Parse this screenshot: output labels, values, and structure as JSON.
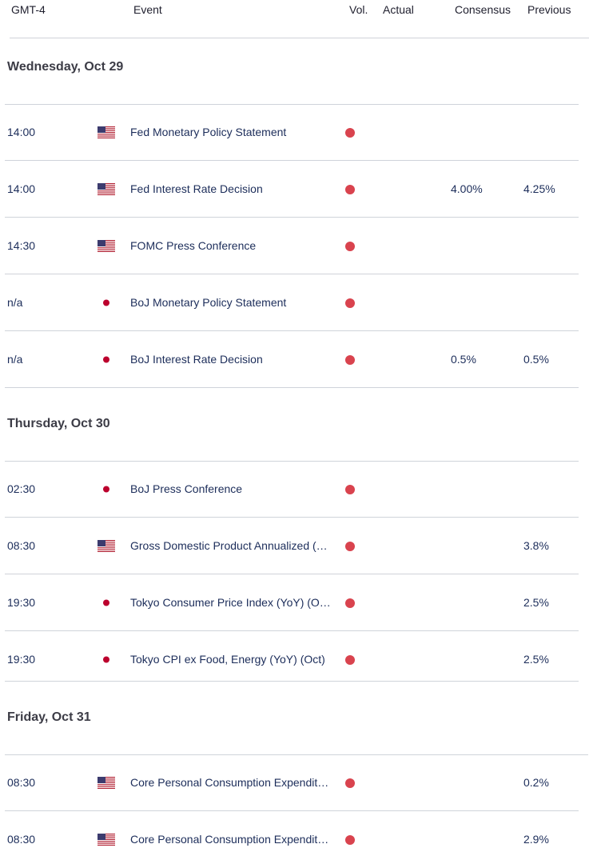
{
  "header": {
    "timezone": "GMT-4",
    "event": "Event",
    "vol": "Vol.",
    "actual": "Actual",
    "consensus": "Consensus",
    "previous": "Previous"
  },
  "colors": {
    "high_impact_dot": "#d9434e",
    "text": "#1c2d5a",
    "divider": "#cfd3da"
  },
  "days": [
    {
      "label": "Wednesday, Oct 29",
      "events": [
        {
          "time": "14:00",
          "flag": "us-flag-icon",
          "event": "Fed Monetary Policy Statement",
          "actual": "",
          "consensus": "",
          "previous": ""
        },
        {
          "time": "14:00",
          "flag": "us-flag-icon",
          "event": "Fed Interest Rate Decision",
          "actual": "",
          "consensus": "4.00%",
          "previous": "4.25%"
        },
        {
          "time": "14:30",
          "flag": "us-flag-icon",
          "event": "FOMC Press Conference",
          "actual": "",
          "consensus": "",
          "previous": ""
        },
        {
          "time": "n/a",
          "flag": "jp-flag-icon",
          "event": "BoJ Monetary Policy Statement",
          "actual": "",
          "consensus": "",
          "previous": ""
        },
        {
          "time": "n/a",
          "flag": "jp-flag-icon",
          "event": "BoJ Interest Rate Decision",
          "actual": "",
          "consensus": "0.5%",
          "previous": "0.5%"
        }
      ]
    },
    {
      "label": "Thursday, Oct 30",
      "events": [
        {
          "time": "02:30",
          "flag": "jp-flag-icon",
          "event": "BoJ Press Conference",
          "actual": "",
          "consensus": "",
          "previous": ""
        },
        {
          "time": "08:30",
          "flag": "us-flag-icon",
          "event": "Gross Domestic Product Annualized (…",
          "actual": "",
          "consensus": "",
          "previous": "3.8%"
        },
        {
          "time": "19:30",
          "flag": "jp-flag-icon",
          "event": "Tokyo Consumer Price Index (YoY) (O…",
          "actual": "",
          "consensus": "",
          "previous": "2.5%"
        },
        {
          "time": "19:30",
          "flag": "jp-flag-icon",
          "event": "Tokyo CPI ex Food, Energy (YoY) (Oct)",
          "actual": "",
          "consensus": "",
          "previous": "2.5%"
        }
      ]
    },
    {
      "label": "Friday, Oct 31",
      "events": [
        {
          "time": "08:30",
          "flag": "us-flag-icon",
          "event": "Core Personal Consumption Expendit…",
          "actual": "",
          "consensus": "",
          "previous": "0.2%"
        },
        {
          "time": "08:30",
          "flag": "us-flag-icon",
          "event": "Core Personal Consumption Expendit…",
          "actual": "",
          "consensus": "",
          "previous": "2.9%"
        }
      ]
    }
  ]
}
